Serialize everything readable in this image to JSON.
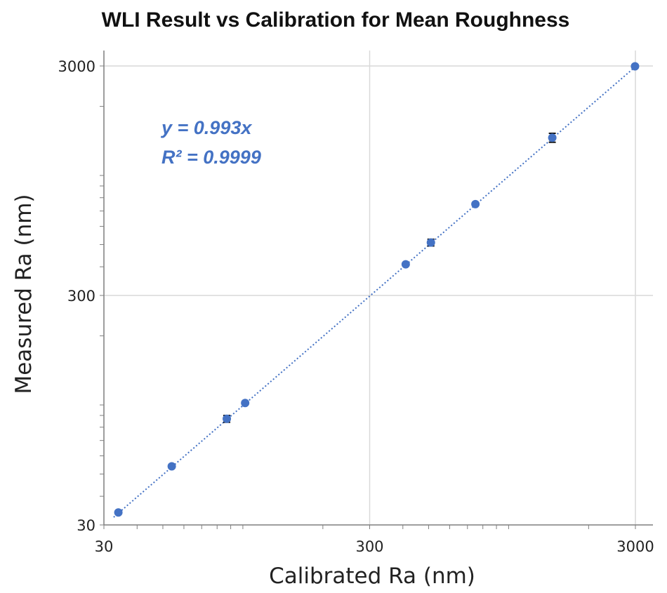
{
  "chart_data": {
    "type": "scatter",
    "title": "WLI Result vs Calibration for Mean Roughness",
    "xlabel": "Calibrated Ra (nm)",
    "ylabel": "Measured Ra (nm)",
    "xscale": "log",
    "yscale": "log",
    "xlim": [
      30,
      3000
    ],
    "ylim": [
      30,
      3000
    ],
    "xticks": [
      "30",
      "300",
      "3000"
    ],
    "yticks": [
      "30",
      "300",
      "3000"
    ],
    "grid": true,
    "legend": "none",
    "annotations": [
      "y = 0.993x",
      "R² = 0.9999"
    ],
    "trendline": {
      "type": "linear",
      "slope": 0.993,
      "style": "dotted"
    },
    "points": [
      {
        "x": 34,
        "y": 34
      },
      {
        "x": 54,
        "y": 54
      },
      {
        "x": 87,
        "y": 87
      },
      {
        "x": 102,
        "y": 102
      },
      {
        "x": 410,
        "y": 410
      },
      {
        "x": 510,
        "y": 510,
        "yerr": 10
      },
      {
        "x": 750,
        "y": 750
      },
      {
        "x": 1460,
        "y": 1460,
        "yerr": 45
      },
      {
        "x": 2990,
        "y": 2990
      }
    ],
    "error_bar_indices": [
      2,
      5,
      7
    ],
    "colors": {
      "marker": "#4472C4",
      "trendline": "#4472C4",
      "error_bar": "#111111",
      "grid": "#d9d9d9",
      "axis": "#7f7f7f",
      "annotation": "#4472C4"
    }
  }
}
